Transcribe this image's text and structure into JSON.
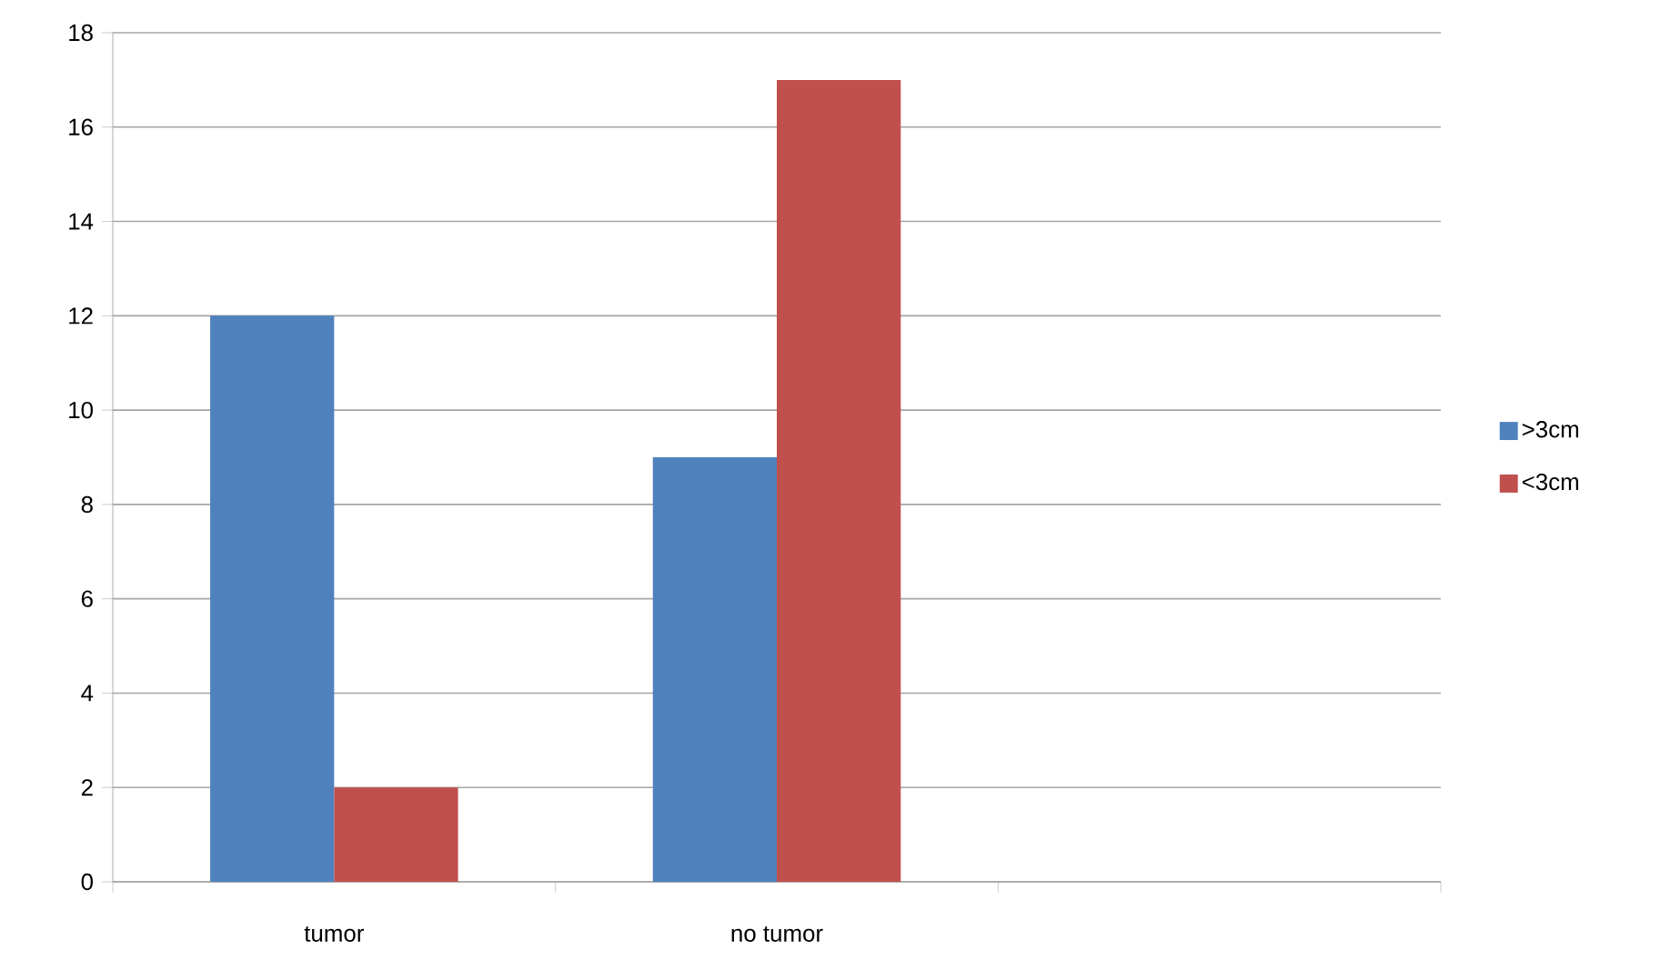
{
  "chart_data": {
    "type": "bar",
    "categories": [
      "tumor",
      "no tumor",
      null
    ],
    "series": [
      {
        "name": ">3cm",
        "color": "#4f81bd",
        "values": [
          12,
          9,
          null
        ]
      },
      {
        "name": "<3cm",
        "color": "#c0504d",
        "values": [
          2,
          17,
          null
        ]
      }
    ],
    "ylim": [
      0,
      18
    ],
    "yticks": [
      0,
      2,
      4,
      6,
      8,
      10,
      12,
      14,
      16,
      18
    ],
    "grid": "y",
    "legend": "right"
  }
}
